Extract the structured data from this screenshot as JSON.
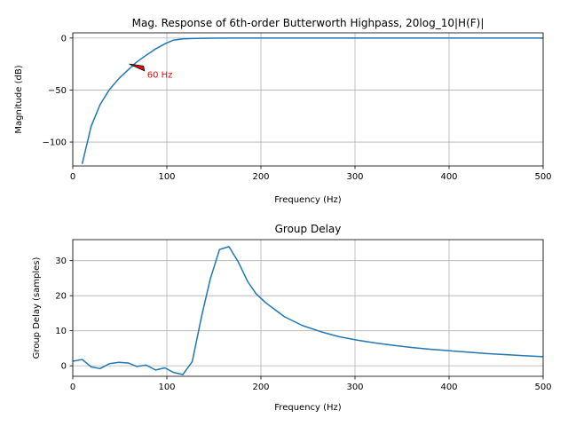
{
  "chart_data": [
    {
      "type": "line",
      "title": "Mag. Response of 6th-order Butterworth Highpass, 20log_10|H(F)|",
      "xlabel": "Frequency (Hz)",
      "ylabel": "Magnitude (dB)",
      "xlim": [
        0,
        500
      ],
      "ylim": [
        -123,
        5
      ],
      "xticks": [
        0,
        100,
        200,
        300,
        400,
        500
      ],
      "yticks": [
        0,
        -50,
        -100
      ],
      "grid": true,
      "series_color": "#1f77b4",
      "x": [
        10,
        19.5,
        29,
        39,
        49,
        59,
        68,
        78,
        88,
        98,
        107,
        117,
        127,
        146,
        166,
        195,
        244,
        293,
        342,
        391,
        440,
        500
      ],
      "values": [
        -121,
        -85,
        -64,
        -49.5,
        -39,
        -30.5,
        -23,
        -16.5,
        -10.5,
        -5.5,
        -2,
        -0.8,
        -0.4,
        -0.15,
        -0.05,
        -0.02,
        0,
        0,
        0,
        0,
        0,
        0
      ],
      "annotation": {
        "text": "60 Hz",
        "x": 60,
        "y": -25,
        "text_x": 79,
        "text_y": -35,
        "color": "#ff0000"
      }
    },
    {
      "type": "line",
      "title": "Group Delay",
      "xlabel": "Frequency (Hz)",
      "ylabel": "Group Delay (samples)",
      "xlim": [
        0,
        500
      ],
      "ylim": [
        -3,
        36
      ],
      "xticks": [
        0,
        100,
        200,
        300,
        400,
        500
      ],
      "yticks": [
        0,
        10,
        20,
        30
      ],
      "grid": true,
      "series_color": "#1f77b4",
      "x": [
        0,
        10,
        19.5,
        29,
        39,
        49,
        59,
        68,
        78,
        88,
        98,
        107,
        117,
        127,
        137,
        146,
        156,
        166,
        176,
        186,
        195,
        205,
        215,
        225,
        244,
        264,
        283,
        303,
        322,
        342,
        361,
        381,
        400,
        420,
        440,
        459,
        479,
        500
      ],
      "values": [
        1.3,
        1.8,
        -0.3,
        -0.8,
        0.6,
        1.0,
        0.8,
        -0.2,
        0.2,
        -1.2,
        -0.6,
        -1.9,
        -2.5,
        1.2,
        14.2,
        24.6,
        33.2,
        34.0,
        29.6,
        24.0,
        20.5,
        18.0,
        16.0,
        14.0,
        11.5,
        9.7,
        8.3,
        7.3,
        6.5,
        5.8,
        5.2,
        4.7,
        4.3,
        3.9,
        3.5,
        3.2,
        2.9,
        2.6
      ]
    }
  ]
}
